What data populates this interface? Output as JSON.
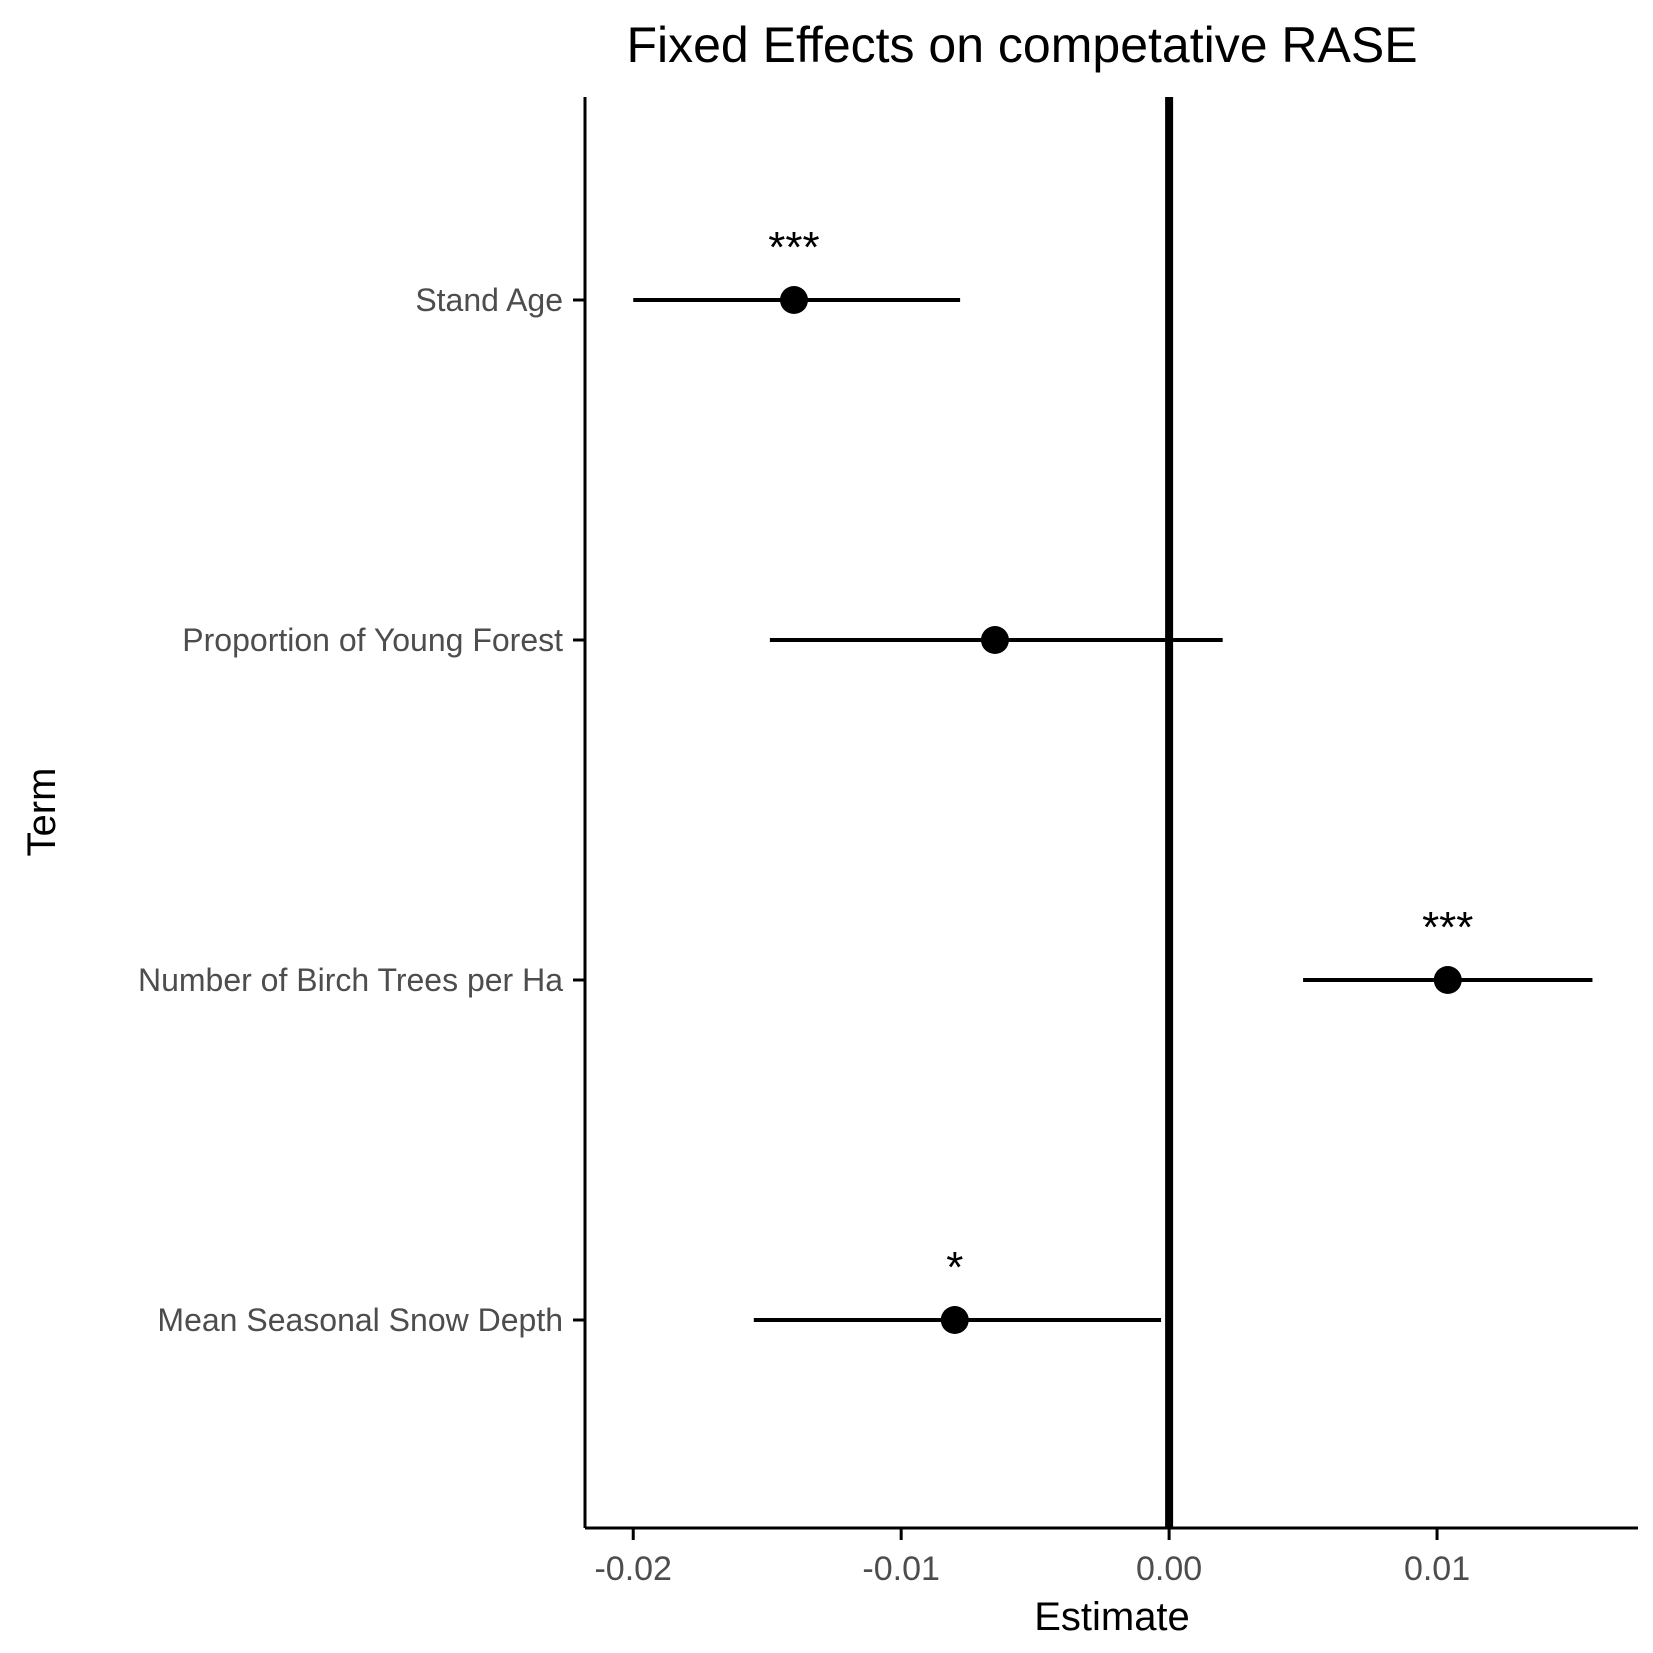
{
  "chart_data": {
    "type": "scatter",
    "title": "Fixed Effects on competative RASE",
    "xlabel": "Estimate",
    "ylabel": "Term",
    "xlim": [
      -0.0218,
      0.0175
    ],
    "x_ticks": [
      {
        "value": -0.02,
        "label": "-0.02"
      },
      {
        "value": -0.01,
        "label": "-0.01"
      },
      {
        "value": 0.0,
        "label": "0.00"
      },
      {
        "value": 0.01,
        "label": "0.01"
      }
    ],
    "reference_line": {
      "x": 0.0
    },
    "grid": false,
    "legend": "none",
    "terms": [
      {
        "label": "Stand Age",
        "estimate": -0.014,
        "lower": -0.02,
        "upper": -0.0078,
        "significance": "***"
      },
      {
        "label": "Proportion of Young Forest",
        "estimate": -0.0065,
        "lower": -0.0149,
        "upper": 0.002,
        "significance": ""
      },
      {
        "label": "Number of Birch Trees per Ha",
        "estimate": 0.0104,
        "lower": 0.005,
        "upper": 0.0158,
        "significance": "***"
      },
      {
        "label": "Mean Seasonal Snow Depth",
        "estimate": -0.008,
        "lower": -0.0155,
        "upper": -0.0003,
        "significance": "*"
      }
    ]
  },
  "colors": {
    "points": "#000000",
    "axis": "#000000",
    "tick_label": "#4d4d4d",
    "background": "#ffffff"
  }
}
